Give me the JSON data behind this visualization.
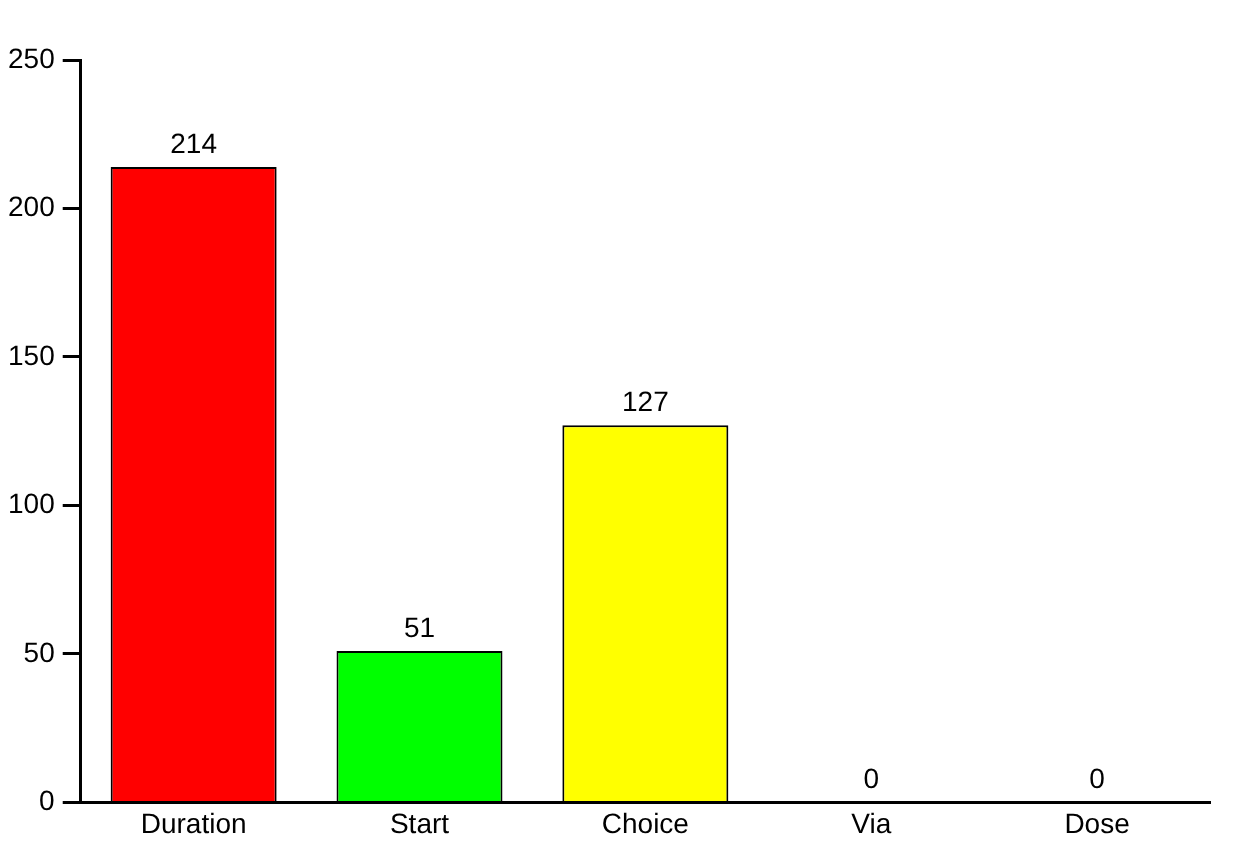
{
  "chart_data": {
    "type": "bar",
    "categories": [
      "Duration",
      "Start",
      "Choice",
      "Via",
      "Dose"
    ],
    "values": [
      214,
      51,
      127,
      0,
      0
    ],
    "colors": [
      "#ff0000",
      "#00ff00",
      "#ffff00",
      "#ff00ff",
      "#0000ff"
    ],
    "ylim": [
      0,
      250
    ],
    "yticks": [
      0,
      50,
      100,
      150,
      200,
      250
    ],
    "grid": false,
    "legend": false,
    "data_labels": true
  }
}
